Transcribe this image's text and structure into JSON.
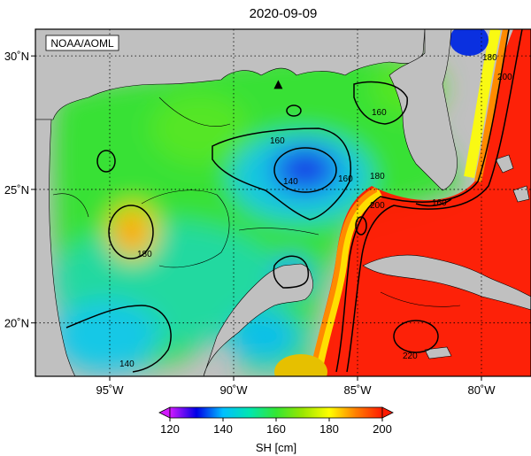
{
  "title": "2020-09-09",
  "credit": "NOAA/AOML",
  "map": {
    "lon_range": [
      -98,
      -78
    ],
    "lat_range": [
      18,
      31
    ],
    "x_ticks": [
      {
        "value": -95,
        "label": "95˚W"
      },
      {
        "value": -90,
        "label": "90˚W"
      },
      {
        "value": -85,
        "label": "85˚W"
      },
      {
        "value": -80,
        "label": "80˚W"
      }
    ],
    "y_ticks": [
      {
        "value": 30,
        "label": "30˚N"
      },
      {
        "value": 25,
        "label": "25˚N"
      },
      {
        "value": 20,
        "label": "20˚N"
      }
    ],
    "contour_labels": [
      "180",
      "200",
      "160",
      "160",
      "140",
      "160",
      "180",
      "200",
      "160",
      "180",
      "220",
      "140"
    ]
  },
  "colorbar": {
    "min": 120,
    "max": 200,
    "ticks": [
      "120",
      "140",
      "160",
      "180",
      "200"
    ],
    "label": "SH [cm]",
    "colors": [
      "#d21aff",
      "#0000e6",
      "#00bfff",
      "#00e6b0",
      "#33e633",
      "#9ae600",
      "#ffff00",
      "#ff7f00",
      "#ff1a00"
    ]
  },
  "colors": {
    "land": "#c0c0c0",
    "grid": "#000000"
  },
  "marker": {
    "name": "buoy-triangle",
    "lon": -88.2,
    "lat": 28.9
  }
}
